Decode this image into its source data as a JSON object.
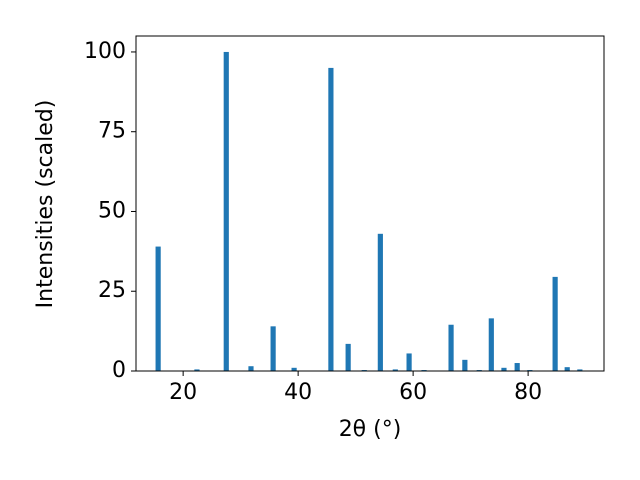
{
  "chart_data": {
    "type": "bar",
    "xlabel": "2θ (°)",
    "ylabel": "Intensities (scaled)",
    "x": [
      15.65,
      22.4,
      27.5,
      31.8,
      35.65,
      39.3,
      45.7,
      48.7,
      51.5,
      54.3,
      56.9,
      59.3,
      61.9,
      66.6,
      69.0,
      71.5,
      73.6,
      75.8,
      78.1,
      80.3,
      84.7,
      86.8,
      89.0
    ],
    "values": [
      39,
      0.5,
      100,
      1.5,
      14,
      1,
      95,
      8.5,
      0.3,
      43,
      0.5,
      5.5,
      0.3,
      14.5,
      3.5,
      0.3,
      16.5,
      1,
      2.5,
      0.3,
      29.5,
      1.2,
      0.5
    ],
    "color": "#1f77b4",
    "xlim": [
      11.8,
      93.2
    ],
    "ylim": [
      0,
      105
    ],
    "xticks": [
      20,
      40,
      60,
      80
    ],
    "yticks": [
      0,
      25,
      50,
      75,
      100
    ]
  }
}
